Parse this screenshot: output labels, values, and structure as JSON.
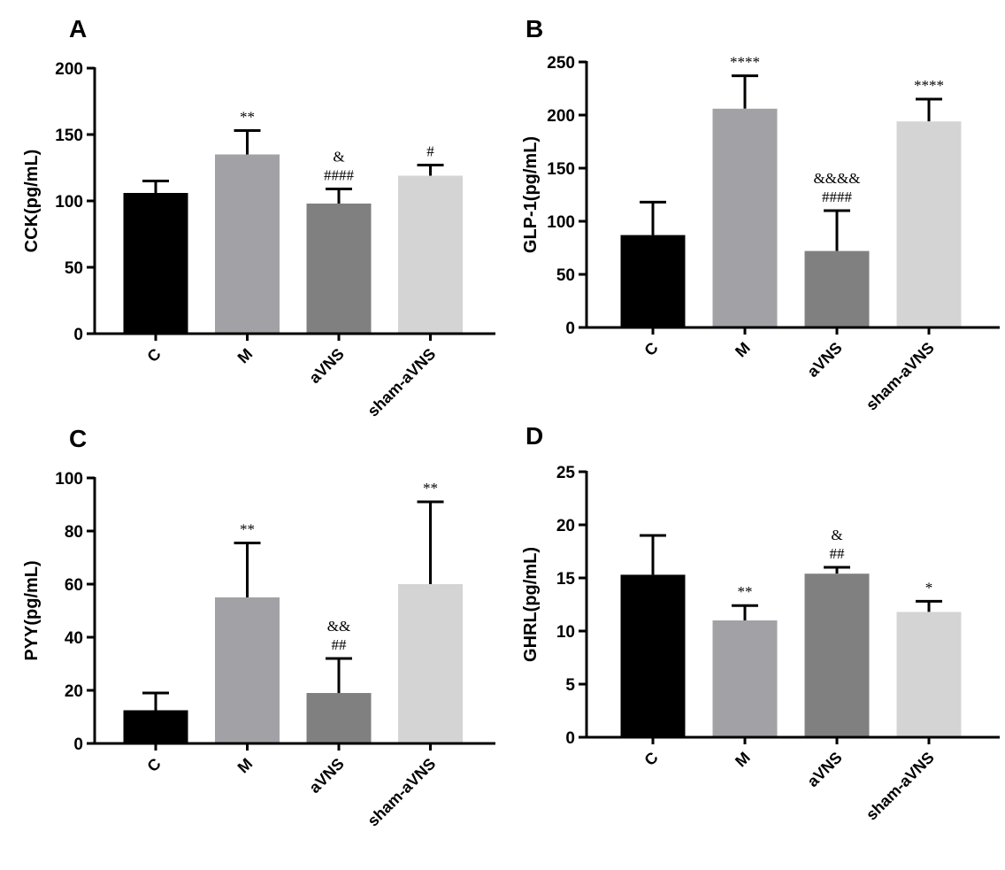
{
  "chart_data": [
    {
      "panel": "A",
      "type": "bar",
      "ylabel": "CCK(pg/mL)",
      "ylim": [
        0,
        200
      ],
      "yticks": [
        0,
        50,
        100,
        150,
        200
      ],
      "categories": [
        "C",
        "M",
        "aVNS",
        "sham-aVNS"
      ],
      "values": [
        106,
        135,
        98,
        119
      ],
      "error_upper": [
        115,
        153,
        109,
        127
      ],
      "annotations": [
        [],
        [
          "**"
        ],
        [
          "&",
          "####"
        ],
        [
          "#"
        ]
      ],
      "colors": [
        "#000000",
        "#a2a2a6",
        "#808080",
        "#d4d4d4"
      ]
    },
    {
      "panel": "B",
      "type": "bar",
      "ylabel": "GLP-1(pg/mL)",
      "ylim": [
        0,
        250
      ],
      "yticks": [
        0,
        50,
        100,
        150,
        200,
        250
      ],
      "categories": [
        "C",
        "M",
        "aVNS",
        "sham-aVNS"
      ],
      "values": [
        87,
        206,
        72,
        194
      ],
      "error_upper": [
        118,
        237,
        110,
        215
      ],
      "annotations": [
        [],
        [
          "****"
        ],
        [
          "&&&&",
          "####"
        ],
        [
          "****"
        ]
      ],
      "colors": [
        "#000000",
        "#a2a2a6",
        "#808080",
        "#d4d4d4"
      ]
    },
    {
      "panel": "C",
      "type": "bar",
      "ylabel": "PYY(pg/mL)",
      "ylim": [
        0,
        100
      ],
      "yticks": [
        0,
        20,
        40,
        60,
        80,
        100
      ],
      "categories": [
        "C",
        "M",
        "aVNS",
        "sham-aVNS"
      ],
      "values": [
        12.5,
        55,
        19,
        60
      ],
      "error_upper": [
        19,
        75.5,
        32,
        91
      ],
      "annotations": [
        [],
        [
          "**"
        ],
        [
          "&&",
          "##"
        ],
        [
          "**"
        ]
      ],
      "colors": [
        "#000000",
        "#a2a2a6",
        "#808080",
        "#d4d4d4"
      ]
    },
    {
      "panel": "D",
      "type": "bar",
      "ylabel": "GHRL(pg/mL)",
      "ylim": [
        0,
        25
      ],
      "yticks": [
        0,
        5,
        10,
        15,
        20,
        25
      ],
      "categories": [
        "C",
        "M",
        "aVNS",
        "sham-aVNS"
      ],
      "values": [
        15.3,
        11,
        15.4,
        11.8
      ],
      "error_upper": [
        19,
        12.4,
        16,
        12.8
      ],
      "annotations": [
        [],
        [
          "**"
        ],
        [
          "&",
          "##"
        ],
        [
          "*"
        ]
      ],
      "colors": [
        "#000000",
        "#a2a2a6",
        "#808080",
        "#d4d4d4"
      ]
    }
  ]
}
